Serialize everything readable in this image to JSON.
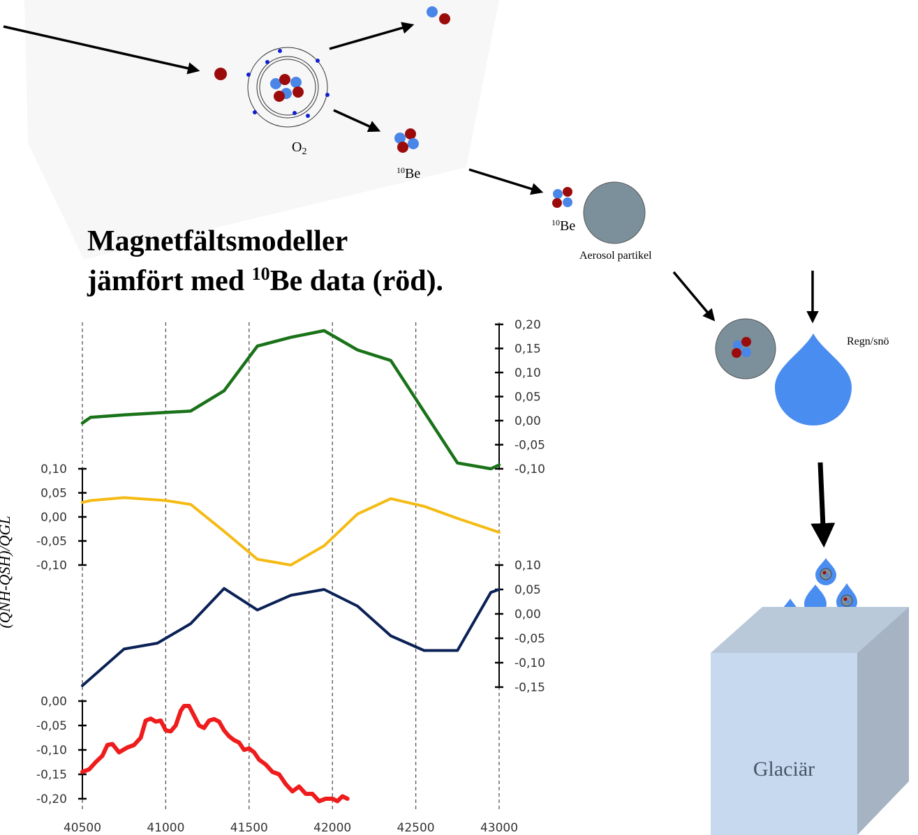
{
  "title": {
    "line1": "Magnetfältsmodeller",
    "line2_prefix": "jämfört med ",
    "line2_sup": "10",
    "line2_suffix": "Be data (röd)."
  },
  "diagram": {
    "o2_label": "O",
    "o2_sub": "2",
    "be10_sup": "10",
    "be10_label": "Be",
    "aerosol_label": "Aerosol partikel",
    "rain_label": "Regn/snö",
    "glacier_label": "Glaciär"
  },
  "y_axis_label": "(QNH-QSH)/QGL",
  "colors": {
    "green": "#1a7219",
    "yellow": "#f5bb14",
    "navy": "#0b2156",
    "red": "#ee1c1c",
    "nucleus_red": "#9b0b0b",
    "nucleus_blue": "#4a86e8",
    "aerosol": "#7b909b",
    "drop": "#4a8df0",
    "glacier_front": "#c6d9ef",
    "glacier_side": "#a5b3c2"
  },
  "chart_data": {
    "type": "line",
    "x_ticks": [
      "40500",
      "41000",
      "41500",
      "42000",
      "42500",
      "43000"
    ],
    "xlim": [
      40500,
      43000
    ],
    "series": [
      {
        "color": "green",
        "ylim": [
          -0.1,
          0.2
        ],
        "y_ticks": [
          "0,20",
          "0,15",
          "0,10",
          "0,05",
          "0,00",
          "-0,05",
          "-0,10"
        ],
        "x": [
          40500,
          40550,
          40750,
          41000,
          41150,
          41350,
          41550,
          41750,
          41950,
          42150,
          42350,
          42750,
          42950,
          43000
        ],
        "y": [
          -0.005,
          0.007,
          0.012,
          0.017,
          0.02,
          0.062,
          0.155,
          0.173,
          0.187,
          0.147,
          0.125,
          -0.088,
          -0.1,
          -0.092
        ]
      },
      {
        "color": "yellow",
        "ylim": [
          -0.1,
          0.1
        ],
        "y_ticks": [
          "0,10",
          "0,05",
          "0,00",
          "-0,05",
          "-0,10"
        ],
        "x": [
          40500,
          40550,
          40750,
          41000,
          41150,
          41350,
          41550,
          41750,
          41950,
          42150,
          42350,
          42550,
          42750,
          43000
        ],
        "y": [
          0.03,
          0.034,
          0.04,
          0.034,
          0.026,
          -0.03,
          -0.088,
          -0.1,
          -0.06,
          0.006,
          0.038,
          0.022,
          -0.003,
          -0.032
        ]
      },
      {
        "color": "navy",
        "ylim": [
          -0.15,
          0.1
        ],
        "y_ticks": [
          "0,10",
          "0,05",
          "0,00",
          "-0,05",
          "-0,10",
          "-0,15"
        ],
        "x": [
          40500,
          40750,
          40950,
          41150,
          41350,
          41550,
          41750,
          41950,
          42150,
          42350,
          42550,
          42750,
          42950,
          43000
        ],
        "y": [
          -0.147,
          -0.072,
          -0.06,
          -0.02,
          0.052,
          0.008,
          0.038,
          0.05,
          0.016,
          -0.045,
          -0.075,
          -0.075,
          0.044,
          0.05
        ]
      },
      {
        "color": "red",
        "ylim": [
          -0.2,
          0.0
        ],
        "y_ticks": [
          "0,00",
          "-0,05",
          "-0,10",
          "-0,15",
          "-0,20"
        ],
        "x": [
          40500,
          40540,
          40580,
          40620,
          40650,
          40680,
          40720,
          40770,
          40810,
          40850,
          40880,
          40910,
          40940,
          40970,
          41000,
          41030,
          41060,
          41090,
          41110,
          41140,
          41170,
          41200,
          41230,
          41260,
          41290,
          41320,
          41350,
          41380,
          41410,
          41440,
          41470,
          41500,
          41530,
          41560,
          41600,
          41640,
          41680,
          41720,
          41760,
          41800,
          41840,
          41880,
          41920,
          41960,
          42000,
          42030,
          42060,
          42090
        ],
        "y": [
          -0.145,
          -0.14,
          -0.125,
          -0.112,
          -0.09,
          -0.088,
          -0.105,
          -0.095,
          -0.09,
          -0.075,
          -0.04,
          -0.036,
          -0.042,
          -0.04,
          -0.06,
          -0.062,
          -0.05,
          -0.02,
          -0.01,
          -0.01,
          -0.03,
          -0.05,
          -0.055,
          -0.04,
          -0.037,
          -0.042,
          -0.06,
          -0.072,
          -0.08,
          -0.085,
          -0.1,
          -0.097,
          -0.105,
          -0.12,
          -0.13,
          -0.145,
          -0.15,
          -0.17,
          -0.185,
          -0.175,
          -0.19,
          -0.19,
          -0.205,
          -0.2,
          -0.2,
          -0.205,
          -0.195,
          -0.2
        ]
      }
    ]
  }
}
